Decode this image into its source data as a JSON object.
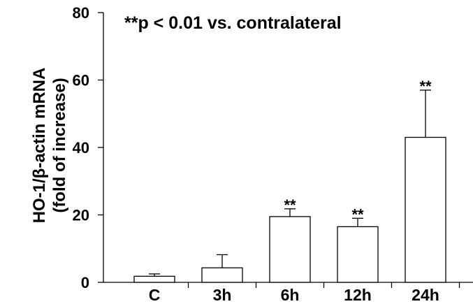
{
  "chart_data": {
    "type": "bar",
    "title": "",
    "annotation": "**p < 0.01 vs. contralateral",
    "ylabel_line1": "HO-1/β-actin mRNA",
    "ylabel_line2": "(fold of increase)",
    "xlabel": "",
    "categories": [
      "C",
      "3h",
      "6h",
      "12h",
      "24h"
    ],
    "values": [
      1.8,
      4.3,
      19.5,
      16.5,
      43.0
    ],
    "error_upper": [
      2.5,
      8.2,
      21.8,
      19.0,
      57.0
    ],
    "significance": [
      "",
      "",
      "**",
      "**",
      "**"
    ],
    "ylim": [
      0,
      80
    ],
    "yticks": [
      "0",
      "20",
      "40",
      "60",
      "80"
    ],
    "bar_fill": "#ffffff",
    "bar_stroke": "#000000",
    "grid": false,
    "legend": "none"
  }
}
